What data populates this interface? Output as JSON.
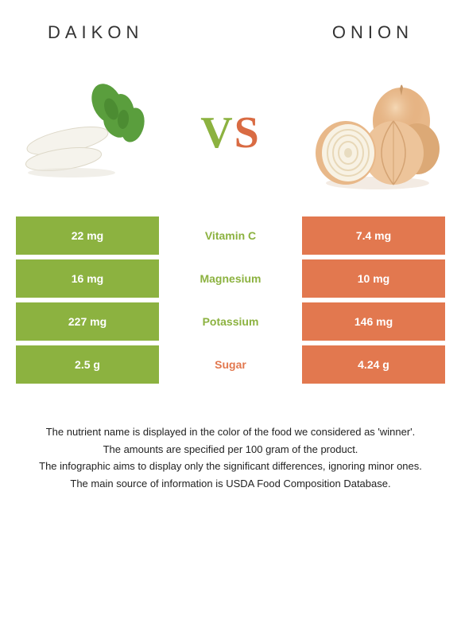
{
  "header": {
    "left_title": "Daikon",
    "right_title": "Onion",
    "vs_v": "V",
    "vs_s": "S"
  },
  "colors": {
    "left": "#8cb240",
    "right": "#e2784f",
    "mid_left_text": "#8cb240",
    "mid_right_text": "#e2784f",
    "title_text": "#555555"
  },
  "rows": [
    {
      "left": "22 mg",
      "label": "Vitamin C",
      "right": "7.4 mg",
      "winner": "left"
    },
    {
      "left": "16 mg",
      "label": "Magnesium",
      "right": "10 mg",
      "winner": "left"
    },
    {
      "left": "227 mg",
      "label": "Potassium",
      "right": "146 mg",
      "winner": "left"
    },
    {
      "left": "2.5 g",
      "label": "Sugar",
      "right": "4.24 g",
      "winner": "right"
    }
  ],
  "footer": {
    "line1": "The nutrient name is displayed in the color of the food we considered as 'winner'.",
    "line2": "The amounts are specified per 100 gram of the product.",
    "line3": "The infographic aims to display only the significant differences, ignoring minor ones.",
    "line4": "The main source of information is USDA Food Composition Database."
  }
}
